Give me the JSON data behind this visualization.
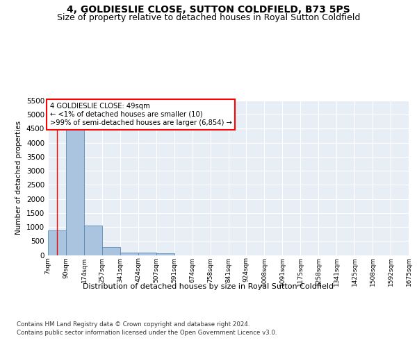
{
  "title": "4, GOLDIESLIE CLOSE, SUTTON COLDFIELD, B73 5PS",
  "subtitle": "Size of property relative to detached houses in Royal Sutton Coldfield",
  "xlabel": "Distribution of detached houses by size in Royal Sutton Coldfield",
  "ylabel": "Number of detached properties",
  "bins": [
    7,
    90,
    174,
    257,
    341,
    424,
    507,
    591,
    674,
    758,
    841,
    924,
    1008,
    1091,
    1175,
    1258,
    1341,
    1425,
    1508,
    1592,
    1675
  ],
  "bin_labels": [
    "7sqm",
    "90sqm",
    "174sqm",
    "257sqm",
    "341sqm",
    "424sqm",
    "507sqm",
    "591sqm",
    "674sqm",
    "758sqm",
    "841sqm",
    "924sqm",
    "1008sqm",
    "1091sqm",
    "1175sqm",
    "1258sqm",
    "1341sqm",
    "1425sqm",
    "1508sqm",
    "1592sqm",
    "1675sqm"
  ],
  "values": [
    880,
    4550,
    1060,
    290,
    90,
    90,
    60,
    0,
    0,
    0,
    0,
    0,
    0,
    0,
    0,
    0,
    0,
    0,
    0,
    0
  ],
  "bar_color": "#aac4e0",
  "bar_edge_color": "#5a8ab5",
  "ylim": [
    0,
    5500
  ],
  "yticks": [
    0,
    500,
    1000,
    1500,
    2000,
    2500,
    3000,
    3500,
    4000,
    4500,
    5000,
    5500
  ],
  "property_size": 49,
  "property_label": "4 GOLDIESLIE CLOSE: 49sqm",
  "annotation_line1": "← <1% of detached houses are smaller (10)",
  "annotation_line2": ">99% of semi-detached houses are larger (6,854) →",
  "red_line_x": 49,
  "footer_line1": "Contains HM Land Registry data © Crown copyright and database right 2024.",
  "footer_line2": "Contains public sector information licensed under the Open Government Licence v3.0.",
  "bg_color": "#e8eef6",
  "title_fontsize": 10,
  "subtitle_fontsize": 9
}
